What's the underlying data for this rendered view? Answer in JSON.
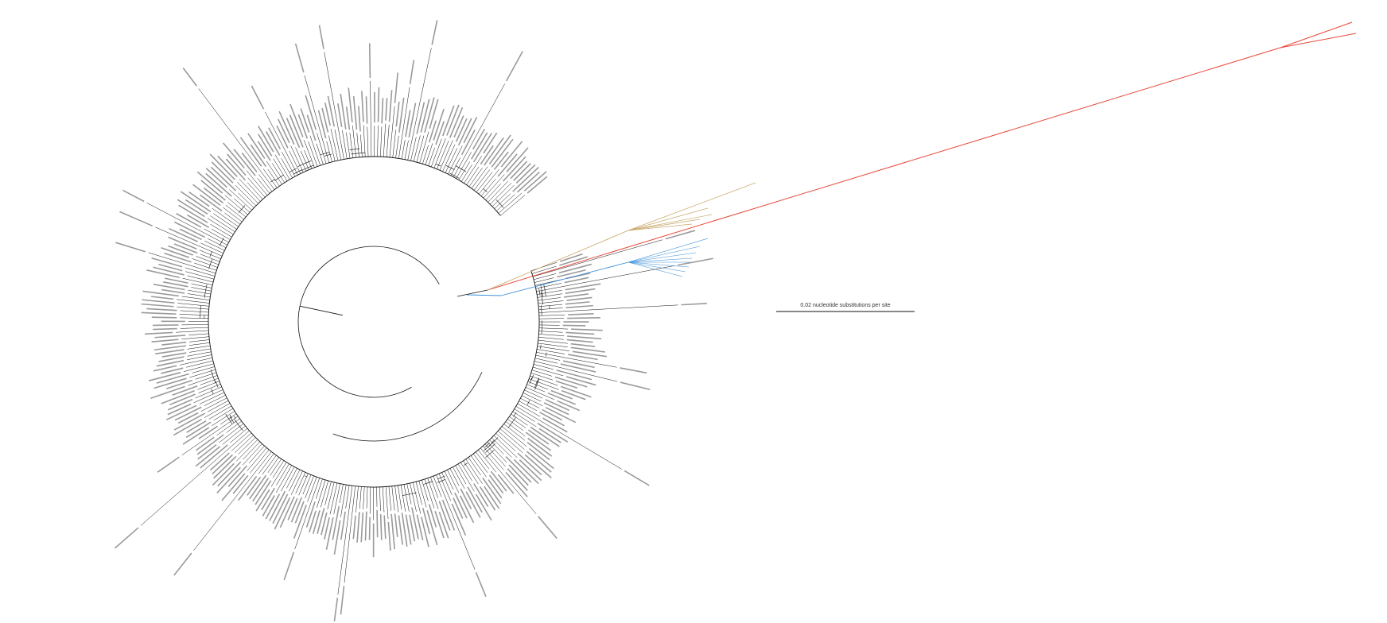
{
  "colors": {
    "background": "#ffffff",
    "branch": "#111111",
    "label": "#9a9a9a",
    "clade_red": "#e8483a",
    "clade_tan": "#c8a86a",
    "clade_blue": "#3b8fd9"
  },
  "scale_bar": {
    "label": "0.02 nucleotide substitutions per site",
    "value": 0.02
  },
  "tree": {
    "layout": "circular",
    "highlighted_clades": [
      {
        "color_key": "clade_red",
        "tips": 2
      },
      {
        "color_key": "clade_tan",
        "tips": 5
      },
      {
        "color_key": "clade_blue",
        "tips": 8
      }
    ]
  }
}
